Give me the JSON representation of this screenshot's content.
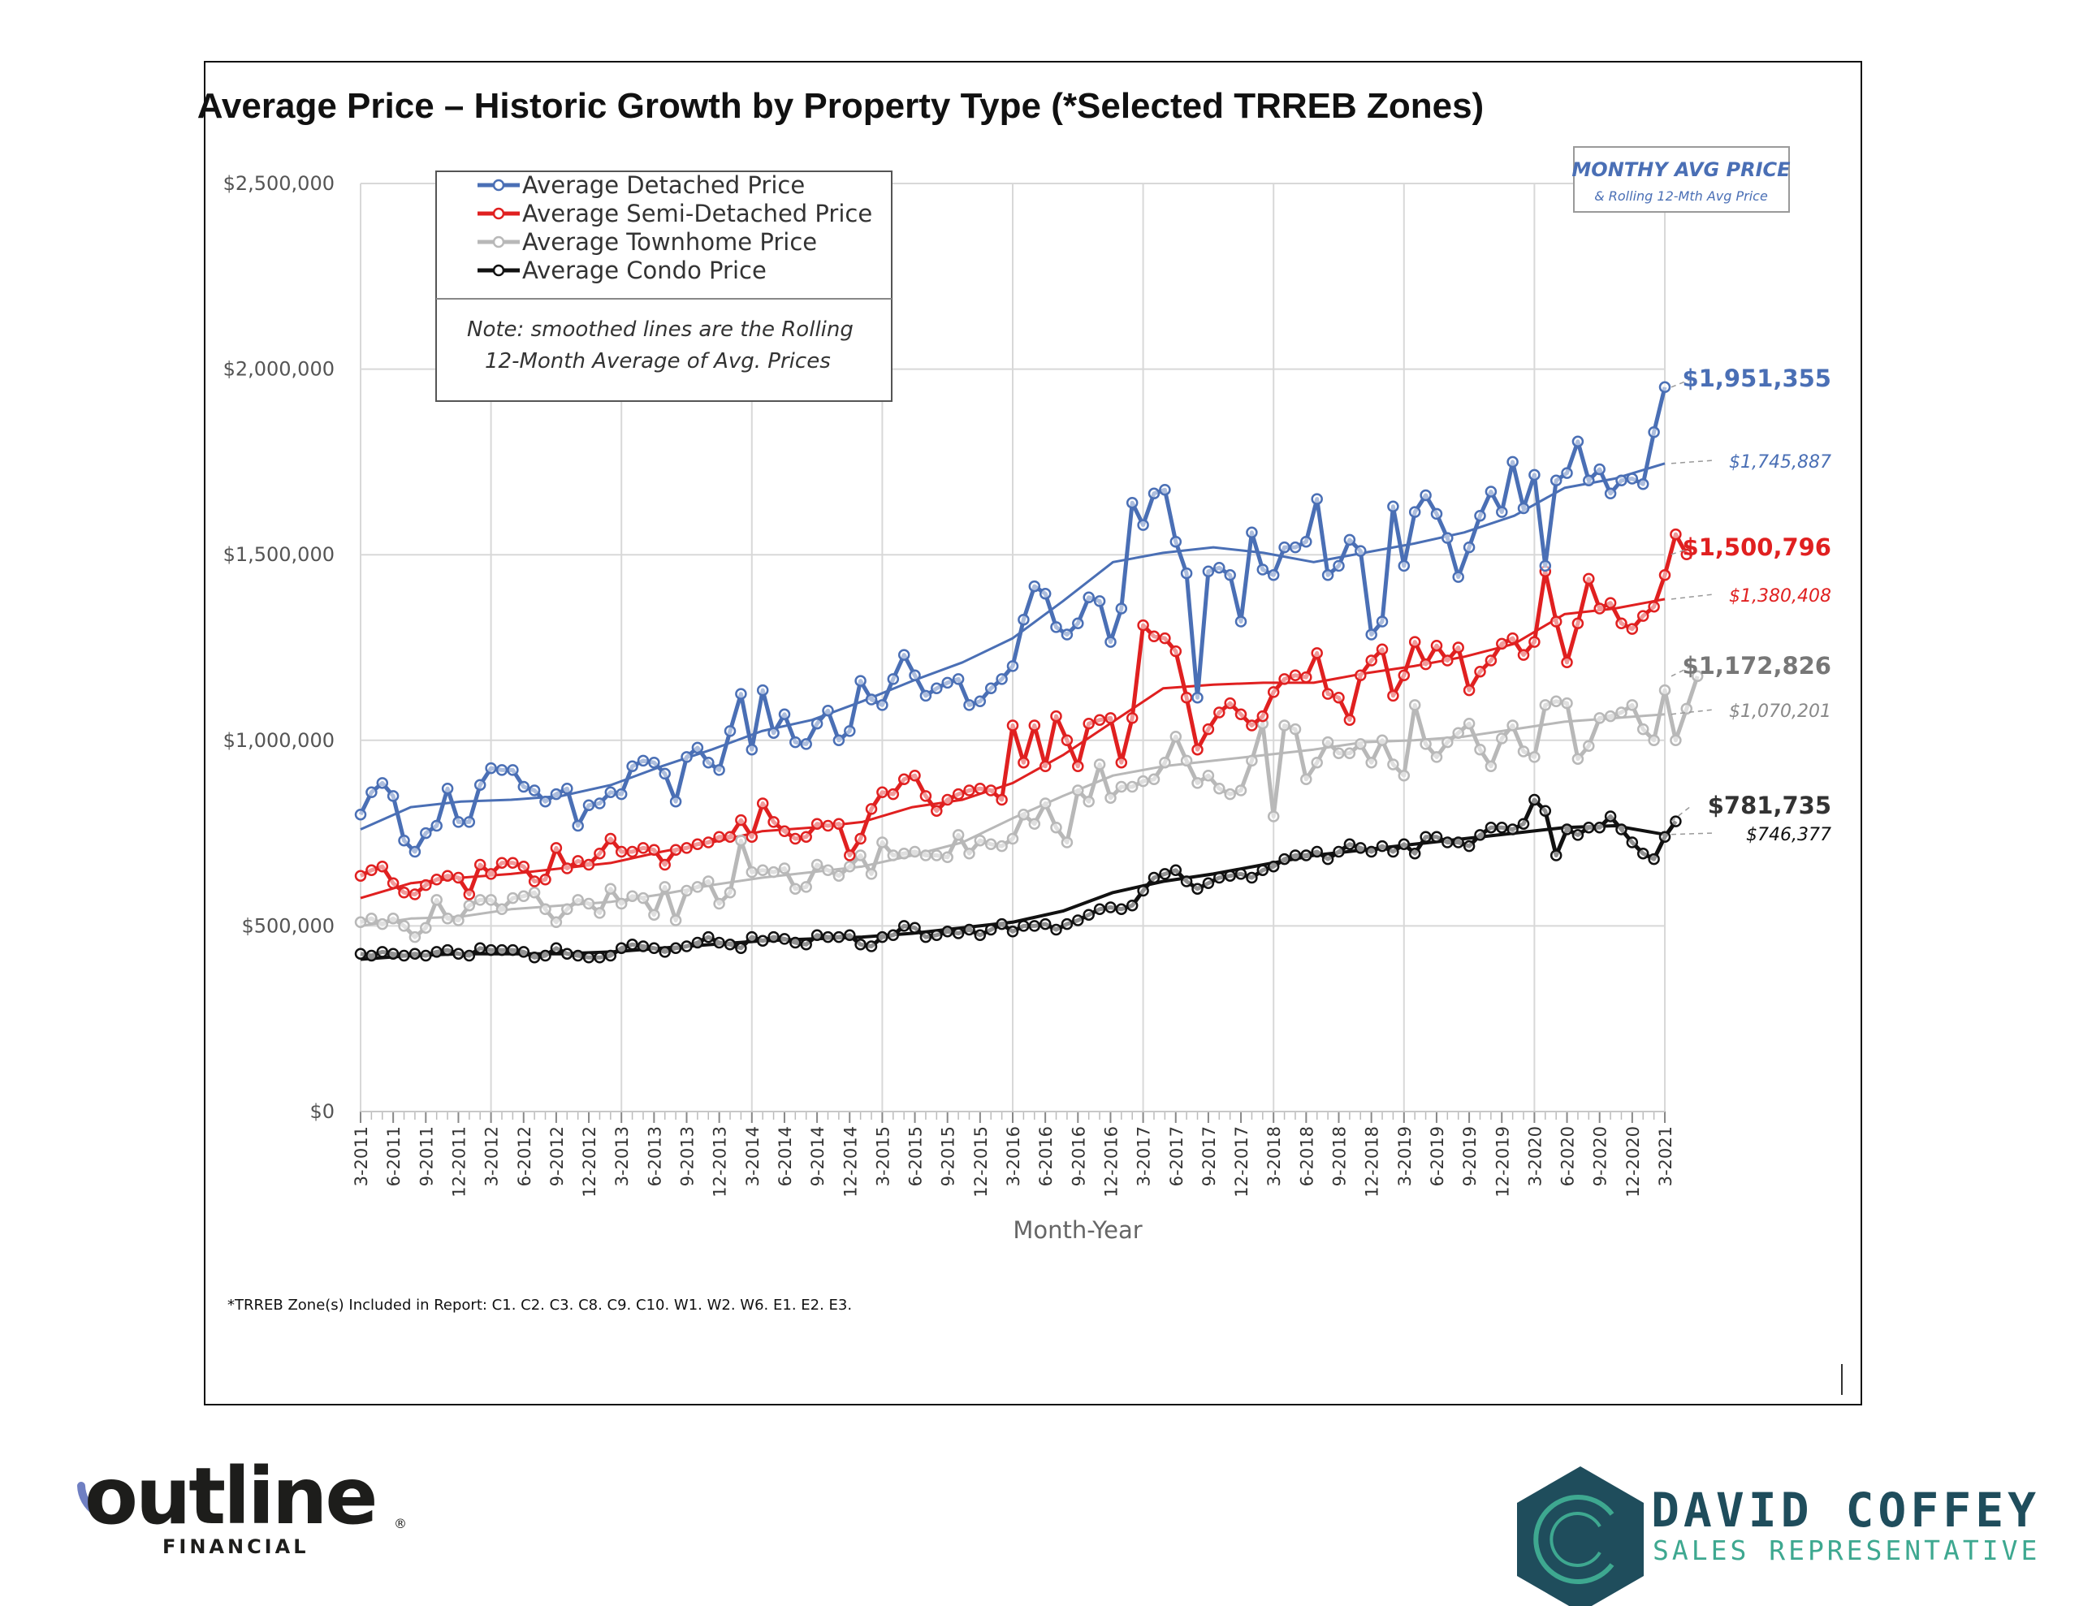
{
  "chart_data": {
    "type": "line",
    "title": "Average Price – Historic Growth by Property Type (*Selected TRREB Zones)",
    "xlabel": "Month-Year",
    "ylabel": "",
    "ylim": [
      0,
      2500000
    ],
    "y_ticks": [
      0,
      500000,
      1000000,
      1500000,
      2000000,
      2500000
    ],
    "y_tick_labels": [
      "$0",
      "$500,000",
      "$1,000,000",
      "$1,500,000",
      "$2,000,000",
      "$2,500,000"
    ],
    "x_start": "3-2011",
    "x_end": "3-2021",
    "x_tick_labels": [
      "3-2011",
      "6-2011",
      "9-2011",
      "12-2011",
      "3-2012",
      "6-2012",
      "9-2012",
      "12-2012",
      "3-2013",
      "6-2013",
      "9-2013",
      "12-2013",
      "3-2014",
      "6-2014",
      "9-2014",
      "12-2014",
      "3-2015",
      "6-2015",
      "9-2015",
      "12-2015",
      "3-2016",
      "6-2016",
      "9-2016",
      "12-2016",
      "3-2017",
      "6-2017",
      "9-2017",
      "12-2017",
      "3-2018",
      "6-2018",
      "9-2018",
      "12-2018",
      "3-2019",
      "6-2019",
      "9-2019",
      "12-2019",
      "3-2020",
      "6-2020",
      "9-2020",
      "12-2020",
      "3-2021"
    ],
    "grid": true,
    "legend_position": "top-left",
    "series": [
      {
        "name": "Average Detached Price",
        "color": "#4a6fb5",
        "values": [
          800000,
          860000,
          885000,
          850000,
          730000,
          700000,
          750000,
          770000,
          870000,
          780000,
          780000,
          880000,
          925000,
          920000,
          920000,
          875000,
          865000,
          835000,
          855000,
          870000,
          770000,
          825000,
          830000,
          860000,
          855000,
          930000,
          945000,
          940000,
          910000,
          835000,
          955000,
          980000,
          940000,
          920000,
          1025000,
          1125000,
          975000,
          1135000,
          1020000,
          1070000,
          995000,
          990000,
          1045000,
          1080000,
          1000000,
          1025000,
          1160000,
          1110000,
          1095000,
          1165000,
          1230000,
          1175000,
          1120000,
          1140000,
          1155000,
          1165000,
          1095000,
          1105000,
          1140000,
          1165000,
          1200000,
          1325000,
          1415000,
          1395000,
          1305000,
          1285000,
          1315000,
          1385000,
          1375000,
          1265000,
          1355000,
          1640000,
          1580000,
          1665000,
          1675000,
          1535000,
          1450000,
          1115000,
          1455000,
          1465000,
          1445000,
          1320000,
          1560000,
          1460000,
          1445000,
          1520000,
          1520000,
          1535000,
          1650000,
          1445000,
          1470000,
          1540000,
          1510000,
          1285000,
          1320000,
          1630000,
          1470000,
          1615000,
          1660000,
          1610000,
          1545000,
          1440000,
          1520000,
          1605000,
          1670000,
          1615000,
          1750000,
          1625000,
          1715000,
          1470000,
          1700000,
          1720000,
          1805000,
          1700000,
          1730000,
          1665000,
          1700000,
          1705000,
          1690000,
          1830000,
          1951355
        ]
      },
      {
        "name": "Average Semi-Detached Price",
        "color": "#e02020",
        "values": [
          635000,
          650000,
          660000,
          615000,
          590000,
          585000,
          610000,
          625000,
          635000,
          630000,
          585000,
          665000,
          640000,
          670000,
          670000,
          660000,
          620000,
          625000,
          710000,
          655000,
          675000,
          665000,
          695000,
          735000,
          700000,
          700000,
          710000,
          705000,
          665000,
          705000,
          710000,
          720000,
          725000,
          740000,
          740000,
          785000,
          740000,
          830000,
          780000,
          755000,
          735000,
          740000,
          775000,
          770000,
          775000,
          690000,
          735000,
          815000,
          860000,
          855000,
          895000,
          905000,
          850000,
          810000,
          840000,
          855000,
          865000,
          870000,
          865000,
          840000,
          1040000,
          940000,
          1040000,
          930000,
          1065000,
          1000000,
          930000,
          1045000,
          1055000,
          1060000,
          940000,
          1060000,
          1310000,
          1280000,
          1275000,
          1240000,
          1115000,
          975000,
          1030000,
          1075000,
          1100000,
          1070000,
          1040000,
          1065000,
          1130000,
          1165000,
          1175000,
          1170000,
          1235000,
          1125000,
          1115000,
          1055000,
          1175000,
          1215000,
          1245000,
          1120000,
          1175000,
          1265000,
          1205000,
          1255000,
          1215000,
          1250000,
          1135000,
          1185000,
          1215000,
          1260000,
          1275000,
          1230000,
          1265000,
          1455000,
          1320000,
          1210000,
          1315000,
          1435000,
          1355000,
          1370000,
          1315000,
          1300000,
          1335000,
          1360000,
          1445000,
          1555000,
          1500796
        ]
      },
      {
        "name": "Average Townhome Price",
        "color": "#b8b8b8",
        "values": [
          510000,
          520000,
          505000,
          520000,
          500000,
          470000,
          495000,
          570000,
          520000,
          515000,
          555000,
          570000,
          570000,
          545000,
          575000,
          580000,
          590000,
          545000,
          510000,
          545000,
          570000,
          560000,
          535000,
          600000,
          560000,
          580000,
          575000,
          530000,
          605000,
          515000,
          595000,
          605000,
          620000,
          560000,
          590000,
          730000,
          645000,
          650000,
          645000,
          655000,
          600000,
          605000,
          665000,
          650000,
          635000,
          660000,
          690000,
          640000,
          725000,
          690000,
          695000,
          700000,
          690000,
          690000,
          685000,
          745000,
          695000,
          730000,
          720000,
          715000,
          735000,
          800000,
          775000,
          830000,
          765000,
          725000,
          865000,
          835000,
          935000,
          845000,
          875000,
          875000,
          890000,
          895000,
          940000,
          1010000,
          945000,
          885000,
          905000,
          870000,
          855000,
          865000,
          945000,
          1045000,
          795000,
          1040000,
          1030000,
          895000,
          940000,
          995000,
          965000,
          965000,
          990000,
          940000,
          1000000,
          935000,
          905000,
          1095000,
          990000,
          955000,
          995000,
          1020000,
          1045000,
          975000,
          930000,
          1005000,
          1040000,
          970000,
          955000,
          1095000,
          1105000,
          1100000,
          950000,
          985000,
          1060000,
          1065000,
          1075000,
          1095000,
          1030000,
          1000000,
          1135000,
          1000000,
          1085000,
          1172826
        ]
      },
      {
        "name": "Average Condo Price",
        "color": "#111111",
        "values": [
          425000,
          420000,
          430000,
          425000,
          420000,
          425000,
          420000,
          430000,
          435000,
          425000,
          420000,
          440000,
          435000,
          435000,
          435000,
          430000,
          415000,
          420000,
          440000,
          425000,
          420000,
          415000,
          415000,
          420000,
          440000,
          450000,
          445000,
          440000,
          430000,
          440000,
          445000,
          455000,
          470000,
          455000,
          450000,
          440000,
          470000,
          460000,
          470000,
          465000,
          455000,
          450000,
          475000,
          470000,
          470000,
          475000,
          450000,
          445000,
          470000,
          475000,
          500000,
          495000,
          470000,
          475000,
          485000,
          480000,
          490000,
          475000,
          490000,
          505000,
          485000,
          500000,
          500000,
          505000,
          490000,
          505000,
          515000,
          530000,
          545000,
          550000,
          545000,
          555000,
          595000,
          630000,
          640000,
          650000,
          620000,
          600000,
          615000,
          630000,
          635000,
          640000,
          630000,
          650000,
          660000,
          680000,
          690000,
          690000,
          700000,
          680000,
          700000,
          720000,
          710000,
          700000,
          715000,
          700000,
          720000,
          695000,
          740000,
          740000,
          725000,
          725000,
          715000,
          745000,
          765000,
          765000,
          760000,
          775000,
          840000,
          810000,
          690000,
          760000,
          745000,
          765000,
          765000,
          795000,
          760000,
          725000,
          695000,
          680000,
          740000,
          781735
        ]
      },
      {
        "name": "Detached Rolling 12-Mth Avg",
        "color": "#4a6fb5",
        "values": [
          760000,
          820000,
          835000,
          840000,
          850000,
          880000,
          930000,
          975000,
          1025000,
          1055000,
          1105000,
          1160000,
          1210000,
          1275000,
          1375000,
          1480000,
          1505000,
          1520000,
          1505000,
          1480000,
          1505000,
          1530000,
          1560000,
          1605000,
          1680000,
          1705000,
          1745887
        ]
      },
      {
        "name": "Semi-Detached Rolling 12-Mth Avg",
        "color": "#e02020",
        "values": [
          575000,
          615000,
          630000,
          640000,
          655000,
          670000,
          700000,
          725000,
          755000,
          765000,
          780000,
          820000,
          840000,
          885000,
          960000,
          1050000,
          1140000,
          1150000,
          1155000,
          1155000,
          1180000,
          1200000,
          1225000,
          1260000,
          1340000,
          1355000,
          1380408
        ]
      },
      {
        "name": "Townhome Rolling 12-Mth Avg",
        "color": "#b8b8b8",
        "values": [
          500000,
          520000,
          525000,
          545000,
          555000,
          565000,
          585000,
          610000,
          630000,
          645000,
          660000,
          690000,
          725000,
          790000,
          850000,
          905000,
          930000,
          945000,
          960000,
          975000,
          995000,
          1000000,
          1010000,
          1030000,
          1050000,
          1060000,
          1070201
        ]
      },
      {
        "name": "Condo Rolling 12-Mth Avg",
        "color": "#111111",
        "values": [
          410000,
          420000,
          425000,
          425000,
          425000,
          430000,
          440000,
          450000,
          460000,
          465000,
          470000,
          480000,
          495000,
          510000,
          540000,
          590000,
          620000,
          640000,
          665000,
          690000,
          705000,
          720000,
          735000,
          750000,
          765000,
          770000,
          746377
        ]
      }
    ],
    "legend": [
      "Average Detached Price",
      "Average Semi-Detached Price",
      "Average Townhome Price",
      "Average Condo Price"
    ],
    "end_labels": [
      {
        "text": "$1,951,355",
        "value": 1951355,
        "color": "#4a6fb5",
        "style": "bold"
      },
      {
        "text": "$1,745,887",
        "value": 1745887,
        "color": "#4a6fb5",
        "style": "italic"
      },
      {
        "text": "$1,500,796",
        "value": 1500796,
        "color": "#e02020",
        "style": "bold"
      },
      {
        "text": "$1,380,408",
        "value": 1380408,
        "color": "#e02020",
        "style": "italic"
      },
      {
        "text": "$1,172,826",
        "value": 1172826,
        "color": "#777777",
        "style": "bold"
      },
      {
        "text": "$1,070,201",
        "value": 1070201,
        "color": "#888888",
        "style": "italic"
      },
      {
        "text": "$781,735",
        "value": 781735,
        "color": "#333333",
        "style": "bold"
      },
      {
        "text": "$746,377",
        "value": 746377,
        "color": "#111111",
        "style": "italic"
      }
    ]
  },
  "legend_note_line1": "Note: smoothed lines are the Rolling",
  "legend_note_line2": "12-Month Average of Avg. Prices",
  "info_box_title": "MONTHY AVG PRICE",
  "info_box_subtitle": "& Rolling 12-Mth Avg Price",
  "footnote": "*TRREB Zone(s) Included in Report: C1. C2. C3. C8. C9. C10. W1. W2. W6. E1. E2. E3.",
  "logo_left": {
    "wordmark": "outline",
    "sub": "FINANCIAL",
    "registered": "®"
  },
  "logo_right": {
    "name": "DAVID COFFEY",
    "role": "SALES REPRESENTATIVE"
  }
}
